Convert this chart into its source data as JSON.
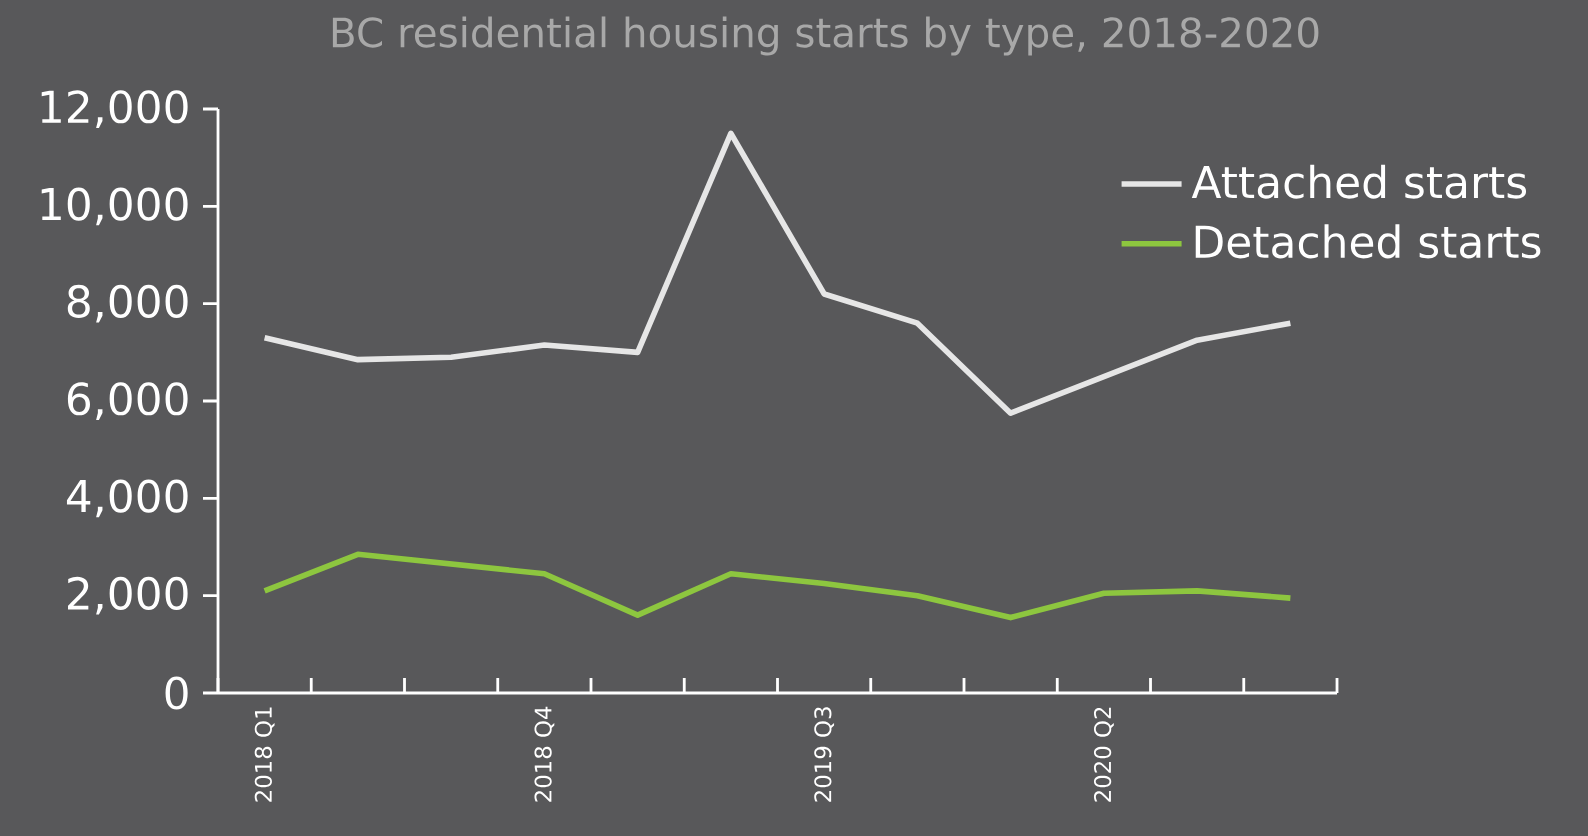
{
  "chart_data": {
    "type": "line",
    "title": "BC residential housing starts by type, 2018-2020",
    "categories": [
      "2018 Q1",
      null,
      null,
      "2018 Q4",
      null,
      null,
      "2019 Q3",
      null,
      null,
      "2020 Q2",
      null,
      null
    ],
    "series": [
      {
        "name": "Attached starts",
        "color": "#e6e6e6",
        "values": [
          7300,
          6850,
          6900,
          7150,
          7000,
          11500,
          8200,
          7600,
          5750,
          6500,
          7250,
          7600
        ]
      },
      {
        "name": "Detached starts",
        "color": "#8dc63f",
        "values": [
          2100,
          2850,
          2650,
          2450,
          1600,
          2450,
          2250,
          2000,
          1550,
          2050,
          2100,
          1950
        ]
      }
    ],
    "ylim": [
      0,
      12000
    ],
    "yticks": [
      {
        "value": 0,
        "label": "0"
      },
      {
        "value": 2000,
        "label": "2,000"
      },
      {
        "value": 4000,
        "label": "4,000"
      },
      {
        "value": 6000,
        "label": "6,000"
      },
      {
        "value": 8000,
        "label": "8,000"
      },
      {
        "value": 10000,
        "label": "10,000"
      },
      {
        "value": 12000,
        "label": "12,000"
      }
    ],
    "legend": "top right",
    "grid": false,
    "marker": "none",
    "line_style": "solid"
  }
}
